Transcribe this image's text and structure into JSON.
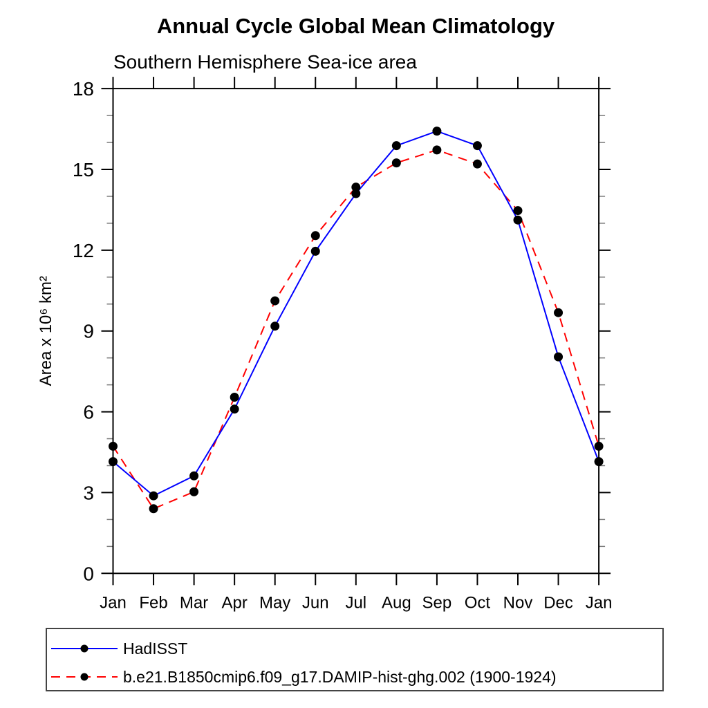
{
  "page": {
    "background": "#ffffff",
    "text_color": "#000000"
  },
  "header": {
    "title": "Annual Cycle Global Mean Climatology",
    "subtitle": "Southern Hemisphere Sea-ice area"
  },
  "chart_data": {
    "type": "line",
    "title": "Annual Cycle Global Mean Climatology",
    "subtitle": "Southern Hemisphere Sea-ice area",
    "xlabel": "",
    "ylabel": "Area x 10⁶ km²",
    "categories": [
      "Jan",
      "Feb",
      "Mar",
      "Apr",
      "May",
      "Jun",
      "Jul",
      "Aug",
      "Sep",
      "Oct",
      "Nov",
      "Dec",
      "Jan"
    ],
    "ylim": [
      0,
      18
    ],
    "ytick_major": [
      0,
      3,
      6,
      9,
      12,
      15,
      18
    ],
    "ytick_minor_step": 1,
    "grid": false,
    "legend_position": "bottom-box",
    "marker": {
      "shape": "circle",
      "color": "#000000",
      "radius": 6.5
    },
    "axis_color": "#000000",
    "minor_tick_color": "#777777",
    "series": [
      {
        "name": "HadISST",
        "color": "#0000ff",
        "style": "solid",
        "values": [
          4.15,
          2.88,
          3.62,
          6.1,
          9.18,
          11.96,
          14.1,
          15.88,
          16.42,
          15.88,
          13.12,
          8.04,
          4.15
        ]
      },
      {
        "name": "b.e21.B1850cmip6.f09_g17.DAMIP-hist-ghg.002 (1900-1924)",
        "color": "#ff0000",
        "style": "dashed",
        "values": [
          4.72,
          2.4,
          3.03,
          6.54,
          10.12,
          12.54,
          14.34,
          15.24,
          15.72,
          15.2,
          13.47,
          9.68,
          4.72
        ]
      }
    ]
  }
}
